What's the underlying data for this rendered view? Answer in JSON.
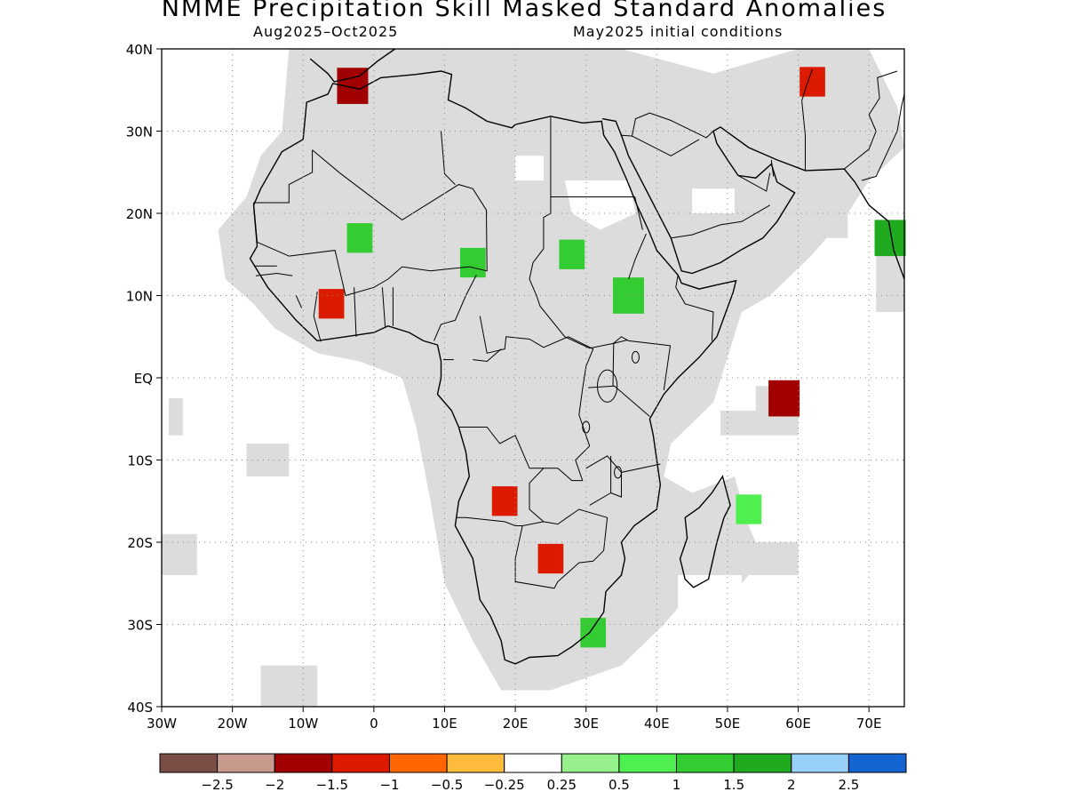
{
  "title": "NMME Precipitation Skill Masked Standard Anomalies",
  "subtitle_left": "Aug2025–Oct2025",
  "subtitle_right": "May2025 initial conditions",
  "map": {
    "lon_range": [
      -30,
      75
    ],
    "lat_range": [
      -40,
      40
    ],
    "lon_ticks": [
      {
        "value": -30,
        "label": "30W"
      },
      {
        "value": -20,
        "label": "20W"
      },
      {
        "value": -10,
        "label": "10W"
      },
      {
        "value": 0,
        "label": "0"
      },
      {
        "value": 10,
        "label": "10E"
      },
      {
        "value": 20,
        "label": "20E"
      },
      {
        "value": 30,
        "label": "30E"
      },
      {
        "value": 40,
        "label": "40E"
      },
      {
        "value": 50,
        "label": "50E"
      },
      {
        "value": 60,
        "label": "60E"
      },
      {
        "value": 70,
        "label": "70E"
      }
    ],
    "lat_ticks": [
      {
        "value": 40,
        "label": "40N"
      },
      {
        "value": 30,
        "label": "30N"
      },
      {
        "value": 20,
        "label": "20N"
      },
      {
        "value": 10,
        "label": "10N"
      },
      {
        "value": 0,
        "label": "EQ"
      },
      {
        "value": -10,
        "label": "10S"
      },
      {
        "value": -20,
        "label": "20S"
      },
      {
        "value": -30,
        "label": "30S"
      },
      {
        "value": -40,
        "label": "40S"
      }
    ],
    "mask_color": "#dcdcdc",
    "anomaly_regions": [
      {
        "name": "Morocco north",
        "lon": -3,
        "lat": 35.5,
        "value": -1.5
      },
      {
        "name": "Iran",
        "lon": 62,
        "lat": 36,
        "value": -1.3
      },
      {
        "name": "Mali wet",
        "lon": -2,
        "lat": 17,
        "value": 1.3
      },
      {
        "name": "Chad",
        "lon": 14,
        "lat": 14,
        "value": 1.3
      },
      {
        "name": "Sudan",
        "lon": 28,
        "lat": 15,
        "value": 1.2
      },
      {
        "name": "Ethiopia",
        "lon": 36,
        "lat": 10,
        "value": 1.5
      },
      {
        "name": "Arabian Sea coast",
        "lon": 73,
        "lat": 17,
        "value": 1.8
      },
      {
        "name": "Ivory Coast",
        "lon": -6,
        "lat": 9,
        "value": -1.2
      },
      {
        "name": "Angola",
        "lon": 18.5,
        "lat": -15,
        "value": -1.2
      },
      {
        "name": "Botswana / Zimbabwe",
        "lon": 25,
        "lat": -22,
        "value": -1.1
      },
      {
        "name": "KwaZulu-Natal",
        "lon": 31,
        "lat": -31,
        "value": 1.1
      },
      {
        "name": "Madagascar east",
        "lon": 53,
        "lat": -16,
        "value": 0.6
      },
      {
        "name": "Mauritius",
        "lon": 58,
        "lat": -2.5,
        "value": -1.6
      }
    ]
  },
  "colorbar": {
    "colors": [
      "#7a4e44",
      "#c89a8e",
      "#a10000",
      "#dc1a00",
      "#ff6600",
      "#ffbb3c",
      "#ffffff",
      "#96f08c",
      "#50ef50",
      "#33cc33",
      "#1faa1f",
      "#98d0f8",
      "#1464d2"
    ],
    "labels": [
      "−2.5",
      "−2",
      "−1.5",
      "−1",
      "−0.5",
      "−0.25",
      "0.25",
      "0.5",
      "1",
      "1.5",
      "2",
      "2.5"
    ]
  }
}
